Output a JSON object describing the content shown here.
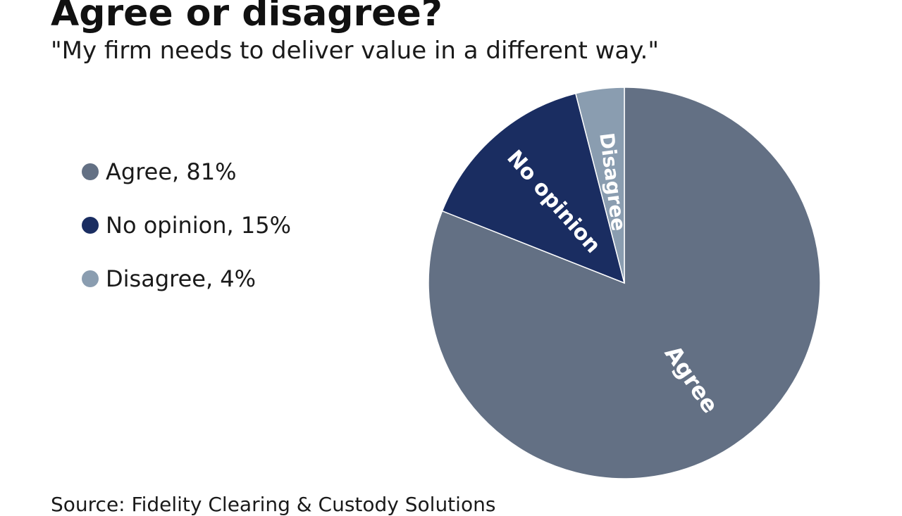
{
  "title": "Agree or disagree?",
  "subtitle": "\"My firm needs to deliver value in a different way.\"",
  "source": "Source: Fidelity Clearing & Custody Solutions",
  "legend": [
    {
      "text": "Agree, 81%",
      "color": "#637084"
    },
    {
      "text": "No opinion, 15%",
      "color": "#1a2d61"
    },
    {
      "text": "Disagree, 4%",
      "color": "#8a9db0"
    }
  ],
  "chart_data": {
    "type": "pie",
    "title": "Agree or disagree?",
    "subtitle": "\"My firm needs to deliver value in a different way.\"",
    "slices": [
      {
        "label": "Agree",
        "value": 81,
        "color": "#637084"
      },
      {
        "label": "No opinion",
        "value": 15,
        "color": "#1a2d61"
      },
      {
        "label": "Disagree",
        "value": 4,
        "color": "#8a9db0"
      }
    ],
    "legend_position": "left"
  }
}
